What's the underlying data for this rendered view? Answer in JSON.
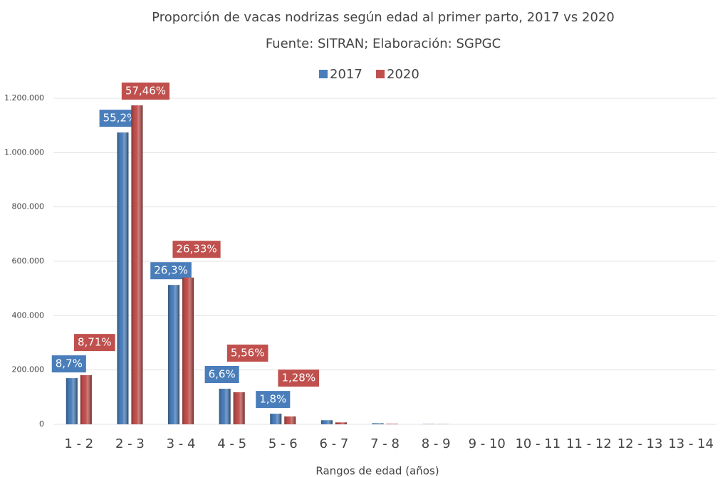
{
  "chart_data": {
    "type": "bar",
    "title": "Proporción de vacas nodrizas según edad al  primer parto, 2017 vs 2020",
    "subtitle": "Fuente: SITRAN; Elaboración: SGPGC",
    "x_label": "Rangos de edad (años)",
    "categories": [
      "1 - 2",
      "2 - 3",
      "3 - 4",
      "4 - 5",
      "5 - 6",
      "6 - 7",
      "7 - 8",
      "8 - 9",
      "9 - 10",
      "10 - 11",
      "11 - 12",
      "12 - 13",
      "13 - 14"
    ],
    "series": [
      {
        "name": "2017",
        "color": "#4a7ebb",
        "values": [
          170000,
          1074000,
          513000,
          131000,
          39000,
          15000,
          4000,
          1000,
          0,
          0,
          0,
          0,
          0
        ],
        "labels": [
          "8,7%",
          "55,2%",
          "26,3%",
          "6,6%",
          "1,8%",
          null,
          null,
          null,
          null,
          null,
          null,
          null,
          null
        ]
      },
      {
        "name": "2020",
        "color": "#c0504d",
        "values": [
          181000,
          1174000,
          540000,
          118000,
          29000,
          7000,
          2000,
          500,
          0,
          0,
          0,
          0,
          0
        ],
        "labels": [
          "8,71%",
          "57,46%",
          "26,33%",
          "5,56%",
          "1,28%",
          null,
          null,
          null,
          null,
          null,
          null,
          null,
          null
        ]
      }
    ],
    "ylim": [
      0,
      1200000
    ],
    "yticks": [
      0,
      {
        "value": 200000,
        "label": "200.000"
      },
      {
        "value": 400000,
        "label": "400.000"
      },
      {
        "value": 600000,
        "label": "600.000"
      },
      {
        "value": 800000,
        "label": "800.000"
      },
      {
        "value": 1000000,
        "label": "1.000.000"
      },
      {
        "value": 1200000,
        "label": "1.200.000"
      }
    ],
    "grid": true,
    "legend": "top"
  }
}
